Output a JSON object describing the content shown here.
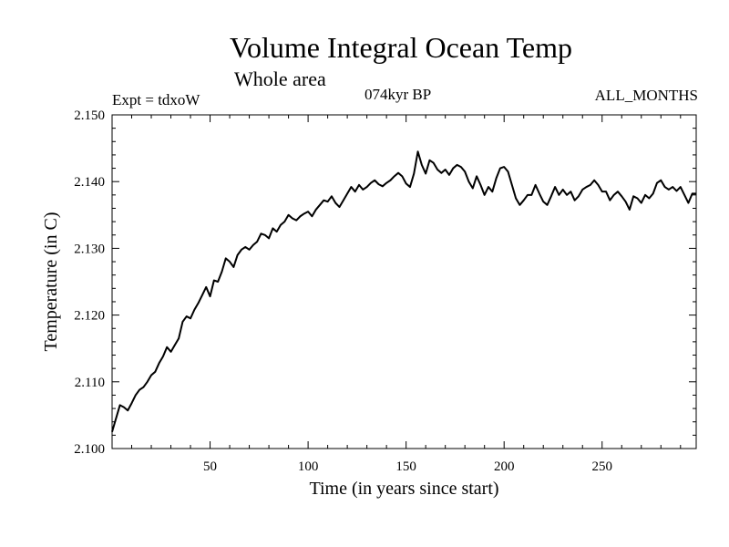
{
  "header": {
    "title": "Volume Integral Ocean Temp",
    "subtitle": "Whole area",
    "experiment": "Expt = tdxoW",
    "period": "074kyr BP",
    "months": "ALL_MONTHS"
  },
  "chart_data": {
    "type": "line",
    "title": "Volume Integral Ocean Temp",
    "subtitle": "Whole area",
    "xlabel": "Time (in years since start)",
    "ylabel": "Temperature (in C)",
    "xlim": [
      0,
      298
    ],
    "ylim": [
      2.1,
      2.15
    ],
    "xticks": [
      50,
      100,
      150,
      200,
      250
    ],
    "xtick_labels": [
      "50",
      "100",
      "150",
      "200",
      "250"
    ],
    "yticks": [
      2.1,
      2.11,
      2.12,
      2.13,
      2.14,
      2.15
    ],
    "ytick_labels": [
      "2.100",
      "2.110",
      "2.120",
      "2.130",
      "2.140",
      "2.150"
    ],
    "grid": false,
    "series": [
      {
        "color": "#000000",
        "x": [
          0,
          2,
          4,
          6,
          8,
          10,
          12,
          14,
          16,
          18,
          20,
          22,
          24,
          26,
          28,
          30,
          32,
          34,
          36,
          38,
          40,
          42,
          44,
          46,
          48,
          50,
          52,
          54,
          56,
          58,
          60,
          62,
          64,
          66,
          68,
          70,
          72,
          74,
          76,
          78,
          80,
          82,
          84,
          86,
          88,
          90,
          92,
          94,
          96,
          98,
          100,
          102,
          104,
          106,
          108,
          110,
          112,
          114,
          116,
          118,
          120,
          122,
          124,
          126,
          128,
          130,
          132,
          134,
          136,
          138,
          140,
          142,
          144,
          146,
          148,
          150,
          152,
          154,
          156,
          158,
          160,
          162,
          164,
          166,
          168,
          170,
          172,
          174,
          176,
          178,
          180,
          182,
          184,
          186,
          188,
          190,
          192,
          194,
          196,
          198,
          200,
          202,
          204,
          206,
          208,
          210,
          212,
          214,
          216,
          218,
          220,
          222,
          224,
          226,
          228,
          230,
          232,
          234,
          236,
          238,
          240,
          242,
          244,
          246,
          248,
          250,
          252,
          254,
          256,
          258,
          260,
          262,
          264,
          266,
          268,
          270,
          272,
          274,
          276,
          278,
          280,
          282,
          284,
          286,
          288,
          290,
          292,
          294,
          296,
          298
        ],
        "y": [
          2.1025,
          2.1045,
          2.1065,
          2.1062,
          2.1057,
          2.1068,
          2.108,
          2.1088,
          2.1092,
          2.11,
          2.111,
          2.1115,
          2.1128,
          2.1138,
          2.1152,
          2.1145,
          2.1155,
          2.1165,
          2.119,
          2.1198,
          2.1195,
          2.1208,
          2.1218,
          2.123,
          2.1242,
          2.1228,
          2.1252,
          2.125,
          2.1265,
          2.1285,
          2.128,
          2.1272,
          2.129,
          2.1298,
          2.1302,
          2.1298,
          2.1305,
          2.131,
          2.1322,
          2.132,
          2.1315,
          2.133,
          2.1325,
          2.1335,
          2.134,
          2.135,
          2.1345,
          2.1342,
          2.1348,
          2.1352,
          2.1355,
          2.1348,
          2.1358,
          2.1365,
          2.1372,
          2.137,
          2.1378,
          2.1368,
          2.1362,
          2.1372,
          2.1382,
          2.1392,
          2.1385,
          2.1395,
          2.1388,
          2.1392,
          2.1398,
          2.1402,
          2.1396,
          2.1393,
          2.1398,
          2.1402,
          2.1408,
          2.1413,
          2.1408,
          2.1397,
          2.1392,
          2.1412,
          2.1445,
          2.1425,
          2.1412,
          2.1432,
          2.1428,
          2.1418,
          2.1413,
          2.1418,
          2.141,
          2.142,
          2.1425,
          2.1422,
          2.1415,
          2.14,
          2.139,
          2.1408,
          2.1395,
          2.138,
          2.1392,
          2.1385,
          2.1405,
          2.142,
          2.1422,
          2.1415,
          2.1395,
          2.1375,
          2.1365,
          2.1372,
          2.138,
          2.138,
          2.1395,
          2.1382,
          2.137,
          2.1365,
          2.1378,
          2.1392,
          2.138,
          2.1388,
          2.138,
          2.1385,
          2.1372,
          2.1378,
          2.1388,
          2.1392,
          2.1395,
          2.1402,
          2.1395,
          2.1385,
          2.1385,
          2.1372,
          2.138,
          2.1385,
          2.1378,
          2.137,
          2.1358,
          2.1378,
          2.1375,
          2.1368,
          2.138,
          2.1375,
          2.1382,
          2.1398,
          2.1402,
          2.1392,
          2.1388,
          2.1392,
          2.1386,
          2.1392,
          2.138,
          2.1368,
          2.1382,
          2.1382
        ]
      }
    ]
  }
}
